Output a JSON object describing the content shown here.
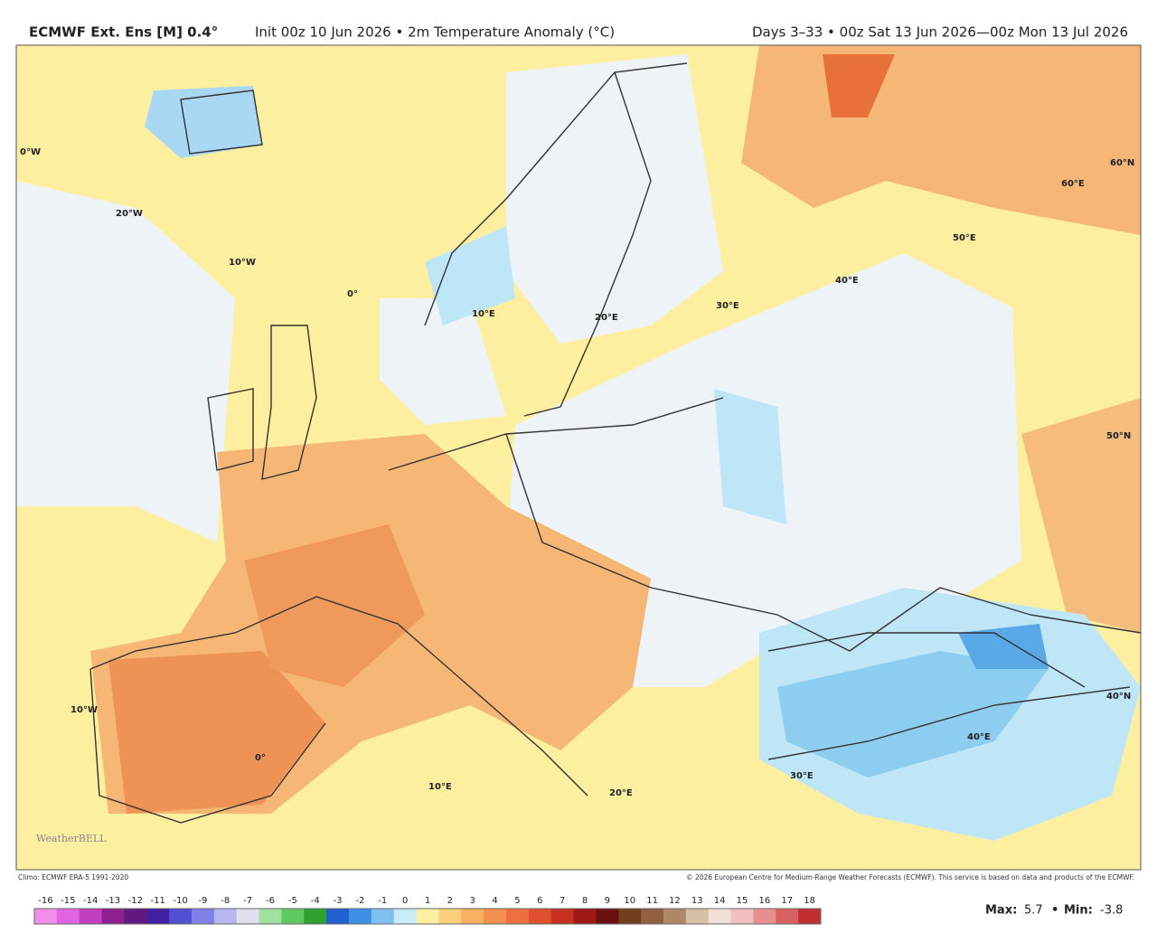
{
  "header": {
    "model": "ECMWF Ext. Ens [M] 0.4°",
    "init": "Init 00z 10 Jun 2026 • 2m Temperature Anomaly (°C)",
    "period": "Days 3–33 • 00z Sat 13 Jun 2026—00z Mon 13 Jul 2026"
  },
  "map": {
    "grid_labels": [
      "0°W",
      "20°W",
      "10°W",
      "0°",
      "10°E",
      "20°E",
      "30°E",
      "40°E",
      "50°E",
      "60°E",
      "60°N",
      "50°N",
      "40°N",
      "40°E",
      "30°E",
      "20°E",
      "10°E",
      "0°",
      "10°W"
    ],
    "watermark": "WeatherBELL"
  },
  "footer": {
    "climo": "Climo: ECMWF ERA-5 1991-2020",
    "copyright": "© 2026 European Centre for Medium-Range Weather Forecasts (ECMWF). This service is based on data and products of the ECMWF.",
    "max_label": "Max:",
    "max": 5.7,
    "min_label": "Min:",
    "min": -3.8
  },
  "colorbar": {
    "ticks": [
      -16,
      -15,
      -14,
      -13,
      -12,
      -11,
      -10,
      -9,
      -8,
      -7,
      -6,
      -5,
      -4,
      -3,
      -2,
      -1,
      0,
      1,
      2,
      3,
      4,
      5,
      6,
      7,
      8,
      9,
      10,
      11,
      12,
      13,
      14,
      15,
      16,
      17,
      18
    ],
    "colors": [
      "#f08ee8",
      "#e065e0",
      "#c040c0",
      "#902090",
      "#601880",
      "#4020a0",
      "#5050d0",
      "#8080e8",
      "#b8b8f0",
      "#e0e0f0",
      "#a0e0a0",
      "#60c860",
      "#30a030",
      "#2060d0",
      "#4090e8",
      "#80c0f0",
      "#c8ecfa",
      "#fdf0a0",
      "#fbd07a",
      "#f8b060",
      "#f39050",
      "#ee7040",
      "#e05030",
      "#c83020",
      "#a01818",
      "#6a1010",
      "#704020",
      "#906040",
      "#b08868",
      "#d8c0a8",
      "#f0e0d8",
      "#f0c0c0",
      "#e89090",
      "#d86060",
      "#c03030"
    ]
  }
}
